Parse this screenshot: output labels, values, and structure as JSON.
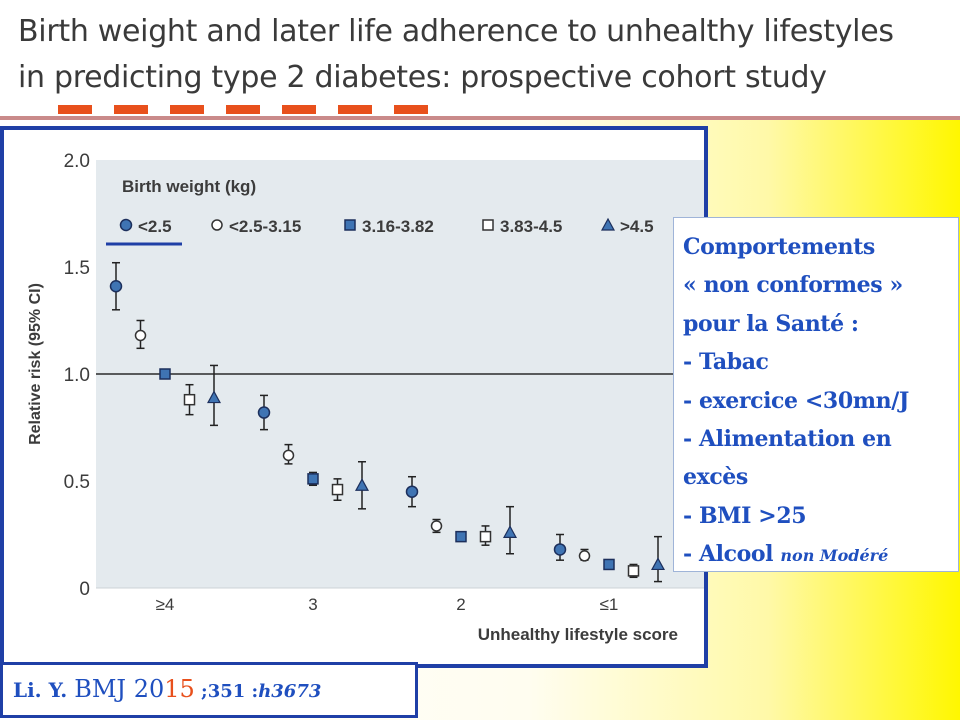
{
  "slide": {
    "title_line1": "Birth weight and later life adherence to unhealthy lifestyles",
    "title_line2": "in predicting type 2 diabetes: prospective cohort study",
    "accent_color": "#e8501c",
    "frame_color": "#1f3fa6"
  },
  "note": {
    "lines": [
      "Comportements",
      "« non conformes »",
      "pour la Santé :",
      "- Tabac",
      "- exercice <30mn/J",
      "- Alimentation en",
      "excès",
      "- BMI >25"
    ],
    "last_prefix": "- Alcool ",
    "last_italic": "non Modéré",
    "text_color": "#1f4fbf"
  },
  "citation": {
    "author": "Li. Y. ",
    "journal": "BMJ ",
    "year_a": "20",
    "year_b": "15",
    "volume": " ;351 :",
    "ref": "h3673"
  },
  "chart_data": {
    "type": "scatter",
    "xlabel": "Unhealthy lifestyle score",
    "ylabel": "Relative risk (95% CI)",
    "categories": [
      "≥4",
      "3",
      "2",
      "≤1"
    ],
    "ylim": [
      0,
      2.0
    ],
    "yticks": [
      "0",
      "0.5",
      "1.0",
      "1.5",
      "2.0"
    ],
    "reference_line": 1.0,
    "legend_title": "Birth weight (kg)",
    "legend_position": "top-left",
    "series": [
      {
        "name": "<2.5",
        "marker": "circle-filled",
        "values": [
          1.41,
          0.82,
          0.45,
          0.18
        ],
        "ci_low": [
          1.3,
          0.74,
          0.38,
          0.13
        ],
        "ci_high": [
          1.52,
          0.9,
          0.52,
          0.25
        ]
      },
      {
        "name": "<2.5-3.15",
        "marker": "circle-open",
        "values": [
          1.18,
          0.62,
          0.29,
          0.15
        ],
        "ci_low": [
          1.12,
          0.58,
          0.26,
          0.13
        ],
        "ci_high": [
          1.25,
          0.67,
          0.32,
          0.18
        ]
      },
      {
        "name": "3.16-3.82",
        "marker": "square-filled",
        "values": [
          1.0,
          0.51,
          0.24,
          0.11
        ],
        "ci_low": [
          1.0,
          0.48,
          0.22,
          0.1
        ],
        "ci_high": [
          1.0,
          0.54,
          0.26,
          0.12
        ]
      },
      {
        "name": "3.83-4.5",
        "marker": "square-open",
        "values": [
          0.88,
          0.46,
          0.24,
          0.08
        ],
        "ci_low": [
          0.81,
          0.41,
          0.2,
          0.05
        ],
        "ci_high": [
          0.95,
          0.51,
          0.29,
          0.11
        ]
      },
      {
        "name": ">4.5",
        "marker": "triangle-filled",
        "values": [
          0.89,
          0.48,
          0.26,
          0.11
        ],
        "ci_low": [
          0.76,
          0.37,
          0.16,
          0.03
        ],
        "ci_high": [
          1.04,
          0.59,
          0.38,
          0.24
        ]
      }
    ],
    "colors": {
      "marker_fill": "#3f74b3",
      "marker_stroke": "#1c2f5c",
      "plot_bg": "#e4eaee",
      "axis_text": "#3c3c3c",
      "legend_underline": "#1f3fa6"
    }
  }
}
